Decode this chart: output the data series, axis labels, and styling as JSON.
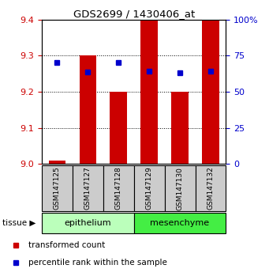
{
  "title": "GDS2699 / 1430406_at",
  "samples": [
    "GSM147125",
    "GSM147127",
    "GSM147128",
    "GSM147129",
    "GSM147130",
    "GSM147132"
  ],
  "bar_heights": [
    9.01,
    9.3,
    9.2,
    9.4,
    9.2,
    9.4
  ],
  "bar_base": 9.0,
  "percentile_values": [
    9.28,
    9.255,
    9.28,
    9.257,
    9.252,
    9.257
  ],
  "ylim_left": [
    9.0,
    9.4
  ],
  "ylim_right": [
    0,
    100
  ],
  "yticks_left": [
    9.0,
    9.1,
    9.2,
    9.3,
    9.4
  ],
  "yticks_right": [
    0,
    25,
    50,
    75,
    100
  ],
  "ytick_labels_right": [
    "0",
    "25",
    "50",
    "75",
    "100%"
  ],
  "bar_color": "#cc0000",
  "dot_color": "#0000cc",
  "tissue_groups": [
    {
      "label": "epithelium",
      "indices": [
        0,
        1,
        2
      ],
      "color": "#bbffbb"
    },
    {
      "label": "mesenchyme",
      "indices": [
        3,
        4,
        5
      ],
      "color": "#44ee44"
    }
  ],
  "tissue_label": "tissue",
  "legend_items": [
    {
      "label": "transformed count",
      "color": "#cc0000"
    },
    {
      "label": "percentile rank within the sample",
      "color": "#0000cc"
    }
  ],
  "bar_width": 0.55,
  "sample_box_color": "#cccccc",
  "figsize": [
    3.41,
    3.54
  ],
  "dpi": 100
}
